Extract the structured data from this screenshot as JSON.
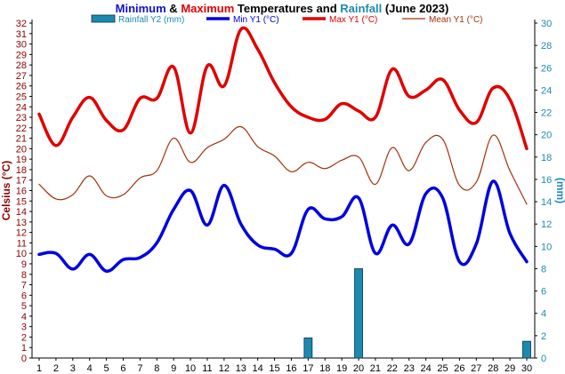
{
  "chart_data": {
    "type": "line",
    "title_parts": [
      {
        "text": "Minimum",
        "color": "#1010d0"
      },
      {
        "text": " & ",
        "color": "#000000"
      },
      {
        "text": "Maximum",
        "color": "#e00000"
      },
      {
        "text": " Temperatures and ",
        "color": "#000000"
      },
      {
        "text": "Rainfall",
        "color": "#1c8ab0"
      },
      {
        "text": " (June 2023)",
        "color": "#000000"
      }
    ],
    "ylabel_left": "Celsius (°C)",
    "ylabel_right": "(mm)",
    "xlabel": "",
    "x": [
      1,
      2,
      3,
      4,
      5,
      6,
      7,
      8,
      9,
      10,
      11,
      12,
      13,
      14,
      15,
      16,
      17,
      18,
      19,
      20,
      21,
      22,
      23,
      24,
      25,
      26,
      27,
      28,
      29,
      30
    ],
    "y_left": {
      "min": 0,
      "max": 32,
      "step": 1
    },
    "y_right": {
      "min": 0,
      "max": 30,
      "step": 2
    },
    "grid": false,
    "legend_position": "top",
    "colors": {
      "left_axis": "#8b0000",
      "right_axis": "#1c8ab0",
      "rain": "#1c8ab0",
      "min": "#0000e0",
      "max": "#e00000",
      "mean": "#a0320a"
    },
    "series": [
      {
        "name": "Rainfall Y2 (mm)",
        "kind": "bar",
        "axis": "right",
        "values": [
          0,
          0,
          0,
          0,
          0,
          0,
          0,
          0,
          0,
          0,
          0,
          0,
          0,
          0,
          0,
          0,
          1.8,
          0,
          0,
          8.0,
          0,
          0,
          0,
          0,
          0,
          0,
          0,
          0,
          0,
          1.5
        ]
      },
      {
        "name": "Min Y1 (°C)",
        "kind": "line",
        "axis": "left",
        "values": [
          9.9,
          10.0,
          8.5,
          9.9,
          8.3,
          9.4,
          9.6,
          11.0,
          14.2,
          16.0,
          12.7,
          16.5,
          12.8,
          10.8,
          10.4,
          10.0,
          14.2,
          13.3,
          13.5,
          15.3,
          10.0,
          12.7,
          10.9,
          15.7,
          15.3,
          9.2,
          10.9,
          16.9,
          11.9,
          9.2
        ]
      },
      {
        "name": "Max Y1 (°C)",
        "kind": "line",
        "axis": "left",
        "values": [
          23.3,
          20.3,
          23.0,
          24.9,
          22.7,
          21.8,
          24.8,
          24.8,
          27.8,
          21.5,
          27.9,
          26.0,
          31.4,
          29.5,
          26.3,
          24.0,
          23.0,
          22.8,
          24.3,
          23.6,
          23.0,
          27.6,
          25.0,
          25.6,
          26.6,
          23.7,
          22.5,
          25.8,
          24.7,
          20.0
        ]
      },
      {
        "name": "Mean Y1 (°C)",
        "kind": "line",
        "axis": "left",
        "values": [
          16.6,
          15.2,
          15.6,
          17.4,
          15.5,
          15.6,
          17.2,
          17.9,
          21.0,
          18.7,
          20.1,
          20.9,
          22.1,
          20.2,
          19.3,
          17.8,
          18.7,
          18.1,
          18.9,
          19.2,
          16.6,
          20.1,
          17.9,
          20.6,
          20.9,
          16.5,
          16.8,
          21.3,
          17.9,
          14.7
        ]
      }
    ]
  }
}
